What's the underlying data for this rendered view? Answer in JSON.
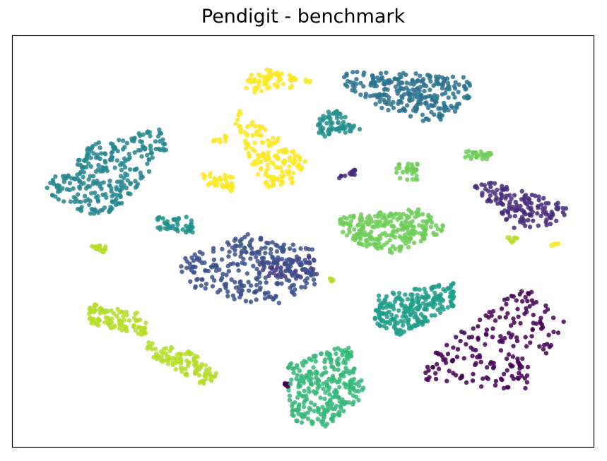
{
  "chart_data": {
    "type": "scatter",
    "title": "Pendigit - benchmark",
    "xlabel": "",
    "ylabel": "",
    "axes_ticks": "hidden",
    "grid": false,
    "legend": "none",
    "marker_alpha": 0.85,
    "xlim": [
      0,
      100
    ],
    "ylim": [
      0,
      100
    ],
    "series": [
      {
        "color": "#440154",
        "clusters": [
          {
            "n": 190,
            "region": [
              [
                72,
                83.5
              ],
              [
                88,
                87.5
              ],
              [
                95,
                69.5
              ],
              [
                88,
                60
              ],
              [
                70,
                80
              ],
              [
                71,
                84
              ]
            ],
            "jitter": 0.9
          },
          {
            "n": 8,
            "region": [
              [
                46.5,
                84.5
              ],
              [
                47.5,
                84.5
              ],
              [
                47.5,
                85.5
              ]
            ]
          }
        ]
      },
      {
        "color": "#472b7a",
        "clusters": [
          {
            "n": 140,
            "region": [
              [
                81,
                35
              ],
              [
                96,
                41
              ],
              [
                94,
                46
              ],
              [
                86,
                47
              ],
              [
                79,
                36
              ]
            ],
            "jitter": 1.0
          },
          {
            "n": 14,
            "region": [
              [
                55,
                35
              ],
              [
                59,
                32
              ],
              [
                59,
                34
              ]
            ]
          }
        ]
      },
      {
        "color": "#453882",
        "clusters": [
          {
            "n": 55,
            "region": [
              [
                42,
                55
              ],
              [
                51,
                53
              ],
              [
                54,
                58
              ],
              [
                44,
                60
              ]
            ]
          }
        ]
      },
      {
        "color": "#3b518b",
        "clusters": [
          {
            "n": 260,
            "region": [
              [
                28,
                55
              ],
              [
                40,
                48
              ],
              [
                52,
                52
              ],
              [
                52,
                61
              ],
              [
                45,
                66
              ],
              [
                38,
                64
              ],
              [
                31,
                62
              ]
            ],
            "jitter": 1.2
          }
        ]
      },
      {
        "color": "#2c728e",
        "clusters": [
          {
            "n": 260,
            "region": [
              [
                57,
                8
              ],
              [
                79,
                10
              ],
              [
                80,
                15
              ],
              [
                72,
                22
              ],
              [
                64,
                18
              ],
              [
                57,
                12
              ]
            ],
            "jitter": 1.2
          }
        ]
      },
      {
        "color": "#24868e",
        "clusters": [
          {
            "n": 280,
            "region": [
              [
                5,
                37
              ],
              [
                14,
                26
              ],
              [
                26,
                22
              ],
              [
                27,
                27
              ],
              [
                17,
                44
              ],
              [
                11,
                43
              ]
            ],
            "jitter": 1.2
          }
        ]
      },
      {
        "color": "#21918c",
        "clusters": [
          {
            "n": 70,
            "region": [
              [
                52,
                20
              ],
              [
                55,
                17
              ],
              [
                60,
                23
              ],
              [
                53,
                25
              ]
            ]
          },
          {
            "n": 45,
            "region": [
              [
                24,
                44
              ],
              [
                31,
                44
              ],
              [
                31,
                48
              ],
              [
                25,
                47
              ]
            ]
          }
        ]
      },
      {
        "color": "#1f9e89",
        "clusters": [
          {
            "n": 230,
            "region": [
              [
                63,
                63
              ],
              [
                76,
                60
              ],
              [
                76,
                66
              ],
              [
                67,
                73
              ],
              [
                62,
                70
              ]
            ],
            "jitter": 1.0
          }
        ]
      },
      {
        "color": "#35b779",
        "clusters": [
          {
            "n": 280,
            "region": [
              [
                47,
                80
              ],
              [
                58,
                75
              ],
              [
                61,
                87
              ],
              [
                54,
                95
              ],
              [
                48,
                94
              ]
            ],
            "jitter": 1.2
          }
        ]
      },
      {
        "color": "#6ece58",
        "clusters": [
          {
            "n": 250,
            "region": [
              [
                56,
                44
              ],
              [
                70,
                42
              ],
              [
                75,
                47
              ],
              [
                66,
                53
              ],
              [
                57,
                50
              ]
            ],
            "jitter": 1.2
          },
          {
            "n": 30,
            "region": [
              [
                77,
                28
              ],
              [
                83,
                28
              ],
              [
                82,
                30
              ],
              [
                78,
                30
              ]
            ]
          },
          {
            "n": 30,
            "region": [
              [
                66,
                31
              ],
              [
                70,
                31
              ],
              [
                70,
                35
              ],
              [
                66,
                35
              ]
            ]
          }
        ]
      },
      {
        "color": "#b5de2b",
        "clusters": [
          {
            "n": 100,
            "region": [
              [
                13,
                65
              ],
              [
                24,
                68
              ],
              [
                23,
                73
              ],
              [
                13,
                70
              ]
            ]
          },
          {
            "n": 110,
            "region": [
              [
                22,
                74
              ],
              [
                31,
                77
              ],
              [
                36,
                83
              ],
              [
                33,
                85
              ],
              [
                24,
                78
              ]
            ]
          },
          {
            "n": 22,
            "region": [
              [
                13,
                51
              ],
              [
                16,
                51
              ],
              [
                16,
                53
              ]
            ]
          },
          {
            "n": 8,
            "region": [
              [
                54.5,
                59
              ],
              [
                55.5,
                59
              ],
              [
                55,
                60.5
              ]
            ]
          },
          {
            "n": 8,
            "region": [
              [
                85,
                49
              ],
              [
                87,
                49
              ],
              [
                86,
                50.5
              ]
            ]
          }
        ]
      },
      {
        "color": "#fde725",
        "clusters": [
          {
            "n": 150,
            "region": [
              [
                39,
                18
              ],
              [
                45,
                24
              ],
              [
                51,
                31
              ],
              [
                49,
                36
              ],
              [
                43,
                37
              ],
              [
                40,
                27
              ],
              [
                38,
                20
              ]
            ],
            "jitter": 1.0
          },
          {
            "n": 70,
            "region": [
              [
                40,
                10
              ],
              [
                44,
                8
              ],
              [
                52,
                11
              ],
              [
                47,
                13
              ],
              [
                40,
                14
              ]
            ]
          },
          {
            "n": 40,
            "region": [
              [
                32,
                33
              ],
              [
                38,
                34
              ],
              [
                38,
                38
              ],
              [
                33,
                36
              ]
            ]
          },
          {
            "n": 10,
            "region": [
              [
                33,
                26
              ],
              [
                37,
                24
              ],
              [
                37,
                26
              ]
            ]
          },
          {
            "n": 6,
            "region": [
              [
                92,
                50.5
              ],
              [
                94,
                50.5
              ],
              [
                93,
                51.5
              ]
            ]
          }
        ]
      }
    ]
  }
}
